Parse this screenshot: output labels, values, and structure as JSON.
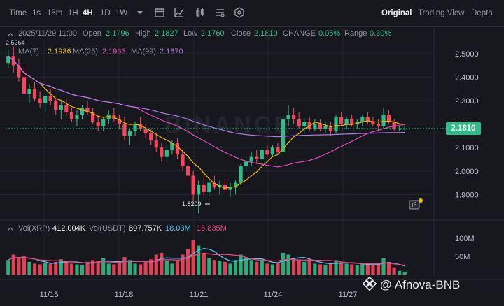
{
  "toolbar": {
    "timeframes": [
      {
        "label": "Time",
        "active": false
      },
      {
        "label": "1s",
        "active": false
      },
      {
        "label": "15m",
        "active": false
      },
      {
        "label": "1H",
        "active": false
      },
      {
        "label": "4H",
        "active": true
      },
      {
        "label": "1D",
        "active": false
      },
      {
        "label": "1W",
        "active": false
      }
    ],
    "icons": [
      "dropdown-icon",
      "calendar-icon",
      "indicator-icon",
      "candle-type-icon",
      "chart-settings-icon",
      "hexagon-settings-icon"
    ],
    "views": [
      {
        "label": "Original",
        "active": true
      },
      {
        "label": "Trading View",
        "active": false
      },
      {
        "label": "Depth",
        "active": false
      }
    ]
  },
  "ohlc": {
    "date": "2025/11/29 11:00",
    "open_label": "Open",
    "open": "2.1796",
    "high_label": "High",
    "high": "2.1827",
    "low_label": "Low",
    "low": "2.1760",
    "close_label": "Close",
    "close": "2.1810",
    "change_label": "CHANGE",
    "change": "0.05%",
    "range_label": "Range",
    "range": "0.30%"
  },
  "ma": {
    "ma7_label": "MA(7)",
    "ma7": "2.1936",
    "ma25_label": "MA(25)",
    "ma25": "2.1963",
    "ma99_label": "MA(99)",
    "ma99": "2.1670"
  },
  "price_axis": [
    "2.5000",
    "2.4000",
    "2.3000",
    "2.2000",
    "2.1000",
    "2.0000",
    "1.9000"
  ],
  "current_price": "2.1810",
  "high_marker": "2.5264",
  "low_marker": "1.8209",
  "volume": {
    "xrp_label": "Vol(XRP)",
    "xrp": "412.004K",
    "usdt_label": "Vol(USDT)",
    "usdt": "897.757K",
    "ma1": "18.03M",
    "ma2": "15.835M",
    "axis": [
      "100M",
      "50M"
    ]
  },
  "date_axis": [
    "11/15",
    "11/18",
    "11/21",
    "11/24",
    "11/27"
  ],
  "watermark_bg": "BINANCE",
  "watermark": "@ Afnova-BNB",
  "colors": {
    "up": "#2ebd85",
    "down": "#f6465d",
    "ma7": "#f0b90b",
    "ma25": "#e04bbf",
    "ma99": "#b07ae8",
    "vol_ma1": "#5bc0eb",
    "vol_ma2": "#e8457a"
  },
  "chart_data": {
    "type": "candlestick",
    "ylim": [
      1.8,
      2.55
    ],
    "candles": [
      [
        2.46,
        2.52,
        2.44,
        2.49
      ],
      [
        2.49,
        2.53,
        2.42,
        2.45
      ],
      [
        2.45,
        2.48,
        2.38,
        2.4
      ],
      [
        2.4,
        2.45,
        2.32,
        2.33
      ],
      [
        2.33,
        2.37,
        2.29,
        2.35
      ],
      [
        2.35,
        2.38,
        2.3,
        2.31
      ],
      [
        2.31,
        2.34,
        2.27,
        2.29
      ],
      [
        2.29,
        2.33,
        2.25,
        2.32
      ],
      [
        2.32,
        2.35,
        2.28,
        2.3
      ],
      [
        2.3,
        2.31,
        2.24,
        2.26
      ],
      [
        2.26,
        2.3,
        2.22,
        2.28
      ],
      [
        2.28,
        2.31,
        2.24,
        2.25
      ],
      [
        2.25,
        2.27,
        2.21,
        2.22
      ],
      [
        2.22,
        2.26,
        2.19,
        2.24
      ],
      [
        2.24,
        2.28,
        2.22,
        2.27
      ],
      [
        2.27,
        2.3,
        2.24,
        2.25
      ],
      [
        2.25,
        2.27,
        2.2,
        2.21
      ],
      [
        2.21,
        2.24,
        2.17,
        2.19
      ],
      [
        2.19,
        2.23,
        2.17,
        2.22
      ],
      [
        2.22,
        2.26,
        2.2,
        2.24
      ],
      [
        2.24,
        2.27,
        2.21,
        2.22
      ],
      [
        2.22,
        2.24,
        2.18,
        2.2
      ],
      [
        2.2,
        2.23,
        2.13,
        2.15
      ],
      [
        2.15,
        2.18,
        2.11,
        2.17
      ],
      [
        2.17,
        2.21,
        2.15,
        2.2
      ],
      [
        2.2,
        2.23,
        2.17,
        2.18
      ],
      [
        2.18,
        2.2,
        2.14,
        2.16
      ],
      [
        2.16,
        2.18,
        2.11,
        2.13
      ],
      [
        2.13,
        2.16,
        2.08,
        2.1
      ],
      [
        2.1,
        2.12,
        2.04,
        2.06
      ],
      [
        2.06,
        2.11,
        2.04,
        2.09
      ],
      [
        2.09,
        2.13,
        2.07,
        2.12
      ],
      [
        2.12,
        2.14,
        2.05,
        2.07
      ],
      [
        2.07,
        2.09,
        2.0,
        2.02
      ],
      [
        2.02,
        2.04,
        1.96,
        1.98
      ],
      [
        1.98,
        2.0,
        1.87,
        1.9
      ],
      [
        1.9,
        1.96,
        1.82,
        1.94
      ],
      [
        1.94,
        1.98,
        1.89,
        1.91
      ],
      [
        1.91,
        1.96,
        1.89,
        1.95
      ],
      [
        1.95,
        1.98,
        1.92,
        1.93
      ],
      [
        1.93,
        1.96,
        1.9,
        1.94
      ],
      [
        1.94,
        1.97,
        1.91,
        1.92
      ],
      [
        1.92,
        1.95,
        1.89,
        1.93
      ],
      [
        1.93,
        1.96,
        1.9,
        1.95
      ],
      [
        1.95,
        2.03,
        1.94,
        2.02
      ],
      [
        2.02,
        2.06,
        2.0,
        2.04
      ],
      [
        2.04,
        2.08,
        2.02,
        2.06
      ],
      [
        2.06,
        2.09,
        2.03,
        2.05
      ],
      [
        2.05,
        2.1,
        2.04,
        2.09
      ],
      [
        2.09,
        2.11,
        2.06,
        2.07
      ],
      [
        2.07,
        2.11,
        2.06,
        2.1
      ],
      [
        2.1,
        2.12,
        2.07,
        2.08
      ],
      [
        2.08,
        2.23,
        2.07,
        2.22
      ],
      [
        2.22,
        2.28,
        2.19,
        2.24
      ],
      [
        2.24,
        2.27,
        2.2,
        2.22
      ],
      [
        2.22,
        2.25,
        2.18,
        2.19
      ],
      [
        2.19,
        2.22,
        2.16,
        2.21
      ],
      [
        2.21,
        2.23,
        2.17,
        2.18
      ],
      [
        2.18,
        2.22,
        2.17,
        2.2
      ],
      [
        2.2,
        2.22,
        2.17,
        2.18
      ],
      [
        2.18,
        2.21,
        2.16,
        2.19
      ],
      [
        2.19,
        2.21,
        2.15,
        2.17
      ],
      [
        2.17,
        2.24,
        2.16,
        2.23
      ],
      [
        2.23,
        2.25,
        2.19,
        2.2
      ],
      [
        2.2,
        2.23,
        2.18,
        2.22
      ],
      [
        2.22,
        2.24,
        2.19,
        2.2
      ],
      [
        2.2,
        2.22,
        2.18,
        2.21
      ],
      [
        2.21,
        2.24,
        2.19,
        2.23
      ],
      [
        2.23,
        2.25,
        2.2,
        2.21
      ],
      [
        2.21,
        2.23,
        2.19,
        2.2
      ],
      [
        2.2,
        2.22,
        2.17,
        2.19
      ],
      [
        2.19,
        2.27,
        2.18,
        2.24
      ],
      [
        2.24,
        2.26,
        2.2,
        2.21
      ],
      [
        2.21,
        2.22,
        2.17,
        2.18
      ],
      [
        2.18,
        2.19,
        2.17,
        2.18
      ],
      [
        2.18,
        2.19,
        2.17,
        2.18
      ]
    ],
    "volume": [
      40,
      55,
      45,
      50,
      35,
      30,
      28,
      32,
      30,
      35,
      42,
      38,
      30,
      28,
      26,
      35,
      40,
      38,
      45,
      30,
      28,
      35,
      48,
      40,
      30,
      28,
      35,
      42,
      55,
      60,
      38,
      30,
      40,
      55,
      70,
      95,
      80,
      60,
      45,
      40,
      38,
      35,
      30,
      40,
      55,
      48,
      40,
      35,
      38,
      30,
      28,
      32,
      60,
      55,
      45,
      40,
      35,
      38,
      30,
      28,
      25,
      30,
      40,
      35,
      30,
      28,
      25,
      30,
      28,
      25,
      30,
      45,
      35,
      20,
      10,
      8
    ],
    "x_labels": [
      "11/15",
      "11/18",
      "11/21",
      "11/24",
      "11/27"
    ]
  }
}
